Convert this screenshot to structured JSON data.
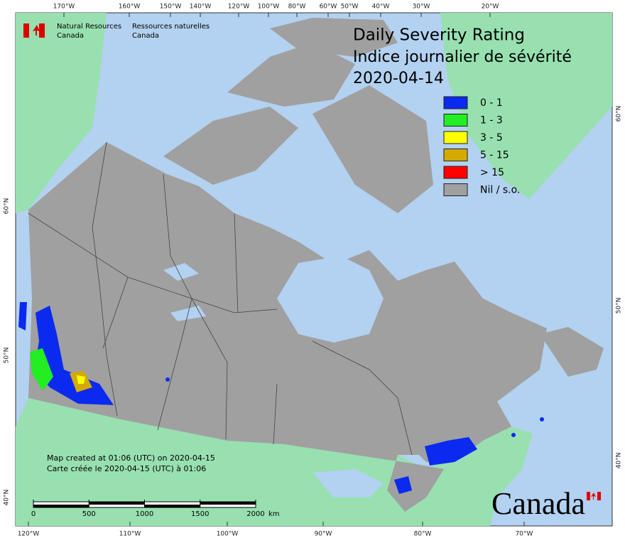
{
  "header": {
    "org_en_1": "Natural Resources",
    "org_en_2": "Canada",
    "org_fr_1": "Ressources naturelles",
    "org_fr_2": "Canada"
  },
  "title": {
    "line1": "Daily Severity Rating",
    "line2": "Indice journalier de sévérité",
    "date": "2020-04-14"
  },
  "legend": [
    {
      "label": "0 - 1",
      "color": "#0a2af0"
    },
    {
      "label": "1 - 3",
      "color": "#22ee22"
    },
    {
      "label": "3 - 5",
      "color": "#ffff00"
    },
    {
      "label": "5 - 15",
      "color": "#d4aa00"
    },
    {
      "label": "> 15",
      "color": "#ff0000"
    },
    {
      "label": "Nil / s.o.",
      "color": "#a0a0a0"
    }
  ],
  "graticule": {
    "top": [
      "170°W",
      "160°W",
      "150°W",
      "140°W",
      "120°W",
      "100°W",
      "80°W",
      "60°W",
      "50°W",
      "40°W",
      "30°W",
      "20°W"
    ],
    "bottom": [
      "120°W",
      "110°W",
      "100°W",
      "90°W",
      "80°W",
      "70°W"
    ],
    "left": [
      "60°N",
      "50°N",
      "40°N"
    ],
    "right": [
      "60°N",
      "50°N",
      "40°N"
    ]
  },
  "notes": {
    "en": "Map created at 01:06 (UTC) on 2020-04-15",
    "fr": "Carte créée le 2020-04-15 (UTC) à 01:06"
  },
  "scale_bar": {
    "ticks": [
      0,
      500,
      1000,
      1500,
      2000
    ],
    "unit": "km"
  },
  "wordmark": "Canada"
}
